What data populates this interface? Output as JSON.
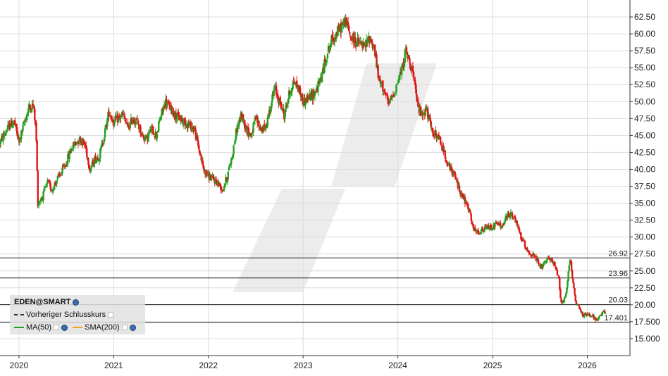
{
  "chart_data": {
    "type": "candlestick",
    "title": "",
    "xlabel": "",
    "ylabel": "",
    "ylim": [
      12.5,
      65
    ],
    "y_ticks": [
      "15.000",
      "17.500",
      "20.00",
      "22.50",
      "25.00",
      "27.50",
      "30.00",
      "32.50",
      "35.00",
      "37.50",
      "40.00",
      "42.50",
      "45.00",
      "47.50",
      "50.00",
      "52.50",
      "55.00",
      "57.50",
      "60.00",
      "62.50"
    ],
    "y_tick_values": [
      15,
      17.5,
      20,
      22.5,
      25,
      27.5,
      30,
      32.5,
      35,
      37.5,
      40,
      42.5,
      45,
      47.5,
      50,
      52.5,
      55,
      57.5,
      60,
      62.5
    ],
    "x_ticks": [
      "2020",
      "2021",
      "2022",
      "2023",
      "2024",
      "2025",
      "2026"
    ],
    "x_tick_values": [
      2020.0,
      2021.0,
      2022.0,
      2023.0,
      2024.0,
      2025.0,
      2026.0
    ],
    "xlim": [
      2019.8,
      2026.45
    ],
    "grid": true,
    "up_color": "#22a022",
    "down_color": "#e01515",
    "reference_lines": [
      {
        "label": "26.92",
        "value": 26.92
      },
      {
        "label": "23.96",
        "value": 23.96
      },
      {
        "label": "20.03",
        "value": 20.03
      },
      {
        "label": "17.401",
        "value": 17.401
      }
    ],
    "price_path": [
      [
        2019.8,
        44.0
      ],
      [
        2019.9,
        46.5
      ],
      [
        2019.95,
        47.0
      ],
      [
        2020.0,
        44.0
      ],
      [
        2020.05,
        46.5
      ],
      [
        2020.1,
        49.0
      ],
      [
        2020.15,
        49.5
      ],
      [
        2020.18,
        46.0
      ],
      [
        2020.2,
        35.0
      ],
      [
        2020.25,
        36.0
      ],
      [
        2020.3,
        38.0
      ],
      [
        2020.35,
        37.0
      ],
      [
        2020.4,
        38.5
      ],
      [
        2020.45,
        39.5
      ],
      [
        2020.5,
        41.0
      ],
      [
        2020.55,
        43.0
      ],
      [
        2020.6,
        44.0
      ],
      [
        2020.65,
        44.5
      ],
      [
        2020.7,
        43.5
      ],
      [
        2020.75,
        40.0
      ],
      [
        2020.8,
        41.5
      ],
      [
        2020.85,
        42.0
      ],
      [
        2020.9,
        45.0
      ],
      [
        2020.95,
        48.5
      ],
      [
        2021.0,
        47.0
      ],
      [
        2021.1,
        48.0
      ],
      [
        2021.15,
        46.0
      ],
      [
        2021.2,
        47.5
      ],
      [
        2021.25,
        47.0
      ],
      [
        2021.3,
        45.0
      ],
      [
        2021.35,
        44.5
      ],
      [
        2021.4,
        46.0
      ],
      [
        2021.45,
        45.0
      ],
      [
        2021.5,
        48.0
      ],
      [
        2021.55,
        50.0
      ],
      [
        2021.6,
        49.0
      ],
      [
        2021.65,
        48.0
      ],
      [
        2021.7,
        47.5
      ],
      [
        2021.75,
        47.0
      ],
      [
        2021.8,
        46.5
      ],
      [
        2021.85,
        46.0
      ],
      [
        2021.9,
        43.0
      ],
      [
        2021.95,
        40.0
      ],
      [
        2022.0,
        39.0
      ],
      [
        2022.05,
        38.5
      ],
      [
        2022.1,
        38.0
      ],
      [
        2022.15,
        37.0
      ],
      [
        2022.2,
        39.0
      ],
      [
        2022.25,
        42.0
      ],
      [
        2022.3,
        46.0
      ],
      [
        2022.35,
        48.0
      ],
      [
        2022.4,
        46.0
      ],
      [
        2022.45,
        45.0
      ],
      [
        2022.5,
        47.5
      ],
      [
        2022.55,
        46.0
      ],
      [
        2022.6,
        46.0
      ],
      [
        2022.65,
        49.0
      ],
      [
        2022.7,
        52.0
      ],
      [
        2022.75,
        50.0
      ],
      [
        2022.8,
        48.0
      ],
      [
        2022.85,
        51.0
      ],
      [
        2022.9,
        53.0
      ],
      [
        2022.95,
        52.0
      ],
      [
        2023.0,
        50.0
      ],
      [
        2023.05,
        50.5
      ],
      [
        2023.1,
        51.0
      ],
      [
        2023.15,
        52.0
      ],
      [
        2023.2,
        54.0
      ],
      [
        2023.25,
        57.0
      ],
      [
        2023.3,
        59.0
      ],
      [
        2023.35,
        60.0
      ],
      [
        2023.4,
        61.0
      ],
      [
        2023.45,
        62.0
      ],
      [
        2023.5,
        59.5
      ],
      [
        2023.55,
        59.0
      ],
      [
        2023.6,
        58.5
      ],
      [
        2023.65,
        58.0
      ],
      [
        2023.7,
        59.5
      ],
      [
        2023.75,
        58.0
      ],
      [
        2023.8,
        53.0
      ],
      [
        2023.85,
        52.0
      ],
      [
        2023.9,
        49.5
      ],
      [
        2023.95,
        51.0
      ],
      [
        2024.0,
        53.0
      ],
      [
        2024.05,
        55.0
      ],
      [
        2024.08,
        57.5
      ],
      [
        2024.12,
        56.0
      ],
      [
        2024.15,
        55.0
      ],
      [
        2024.2,
        50.0
      ],
      [
        2024.25,
        48.0
      ],
      [
        2024.3,
        49.0
      ],
      [
        2024.35,
        46.0
      ],
      [
        2024.4,
        45.0
      ],
      [
        2024.45,
        44.0
      ],
      [
        2024.5,
        42.0
      ],
      [
        2024.55,
        40.0
      ],
      [
        2024.6,
        39.0
      ],
      [
        2024.65,
        37.0
      ],
      [
        2024.7,
        35.5
      ],
      [
        2024.75,
        34.0
      ],
      [
        2024.8,
        31.0
      ],
      [
        2024.85,
        30.5
      ],
      [
        2024.9,
        31.0
      ],
      [
        2024.95,
        31.5
      ],
      [
        2025.0,
        31.5
      ],
      [
        2025.05,
        32.0
      ],
      [
        2025.1,
        31.5
      ],
      [
        2025.15,
        33.0
      ],
      [
        2025.2,
        33.5
      ],
      [
        2025.25,
        32.0
      ],
      [
        2025.3,
        30.0
      ],
      [
        2025.35,
        28.5
      ],
      [
        2025.4,
        27.5
      ],
      [
        2025.45,
        27.0
      ],
      [
        2025.5,
        25.5
      ],
      [
        2025.55,
        26.0
      ],
      [
        2025.6,
        27.0
      ],
      [
        2025.65,
        26.0
      ],
      [
        2025.7,
        24.0
      ],
      [
        2025.72,
        20.5
      ],
      [
        2025.75,
        20.5
      ],
      [
        2025.78,
        22.0
      ],
      [
        2025.8,
        25.0
      ],
      [
        2025.82,
        26.5
      ],
      [
        2025.85,
        23.0
      ],
      [
        2025.88,
        20.0
      ],
      [
        2025.92,
        19.5
      ],
      [
        2025.95,
        18.5
      ],
      [
        2026.0,
        18.5
      ],
      [
        2026.05,
        18.5
      ],
      [
        2026.08,
        18.0
      ],
      [
        2026.1,
        17.5
      ],
      [
        2026.12,
        18.0
      ],
      [
        2026.15,
        18.5
      ],
      [
        2026.17,
        19.0
      ],
      [
        2026.2,
        19.0
      ]
    ]
  },
  "legend": {
    "title": "EDEN@SMART",
    "prev_close": "Vorheriger Schlusskurs",
    "ma50": "MA(50)",
    "sma200": "SMA(200)",
    "ma50_color": "#22a022",
    "sma200_color": "#f0a020"
  }
}
